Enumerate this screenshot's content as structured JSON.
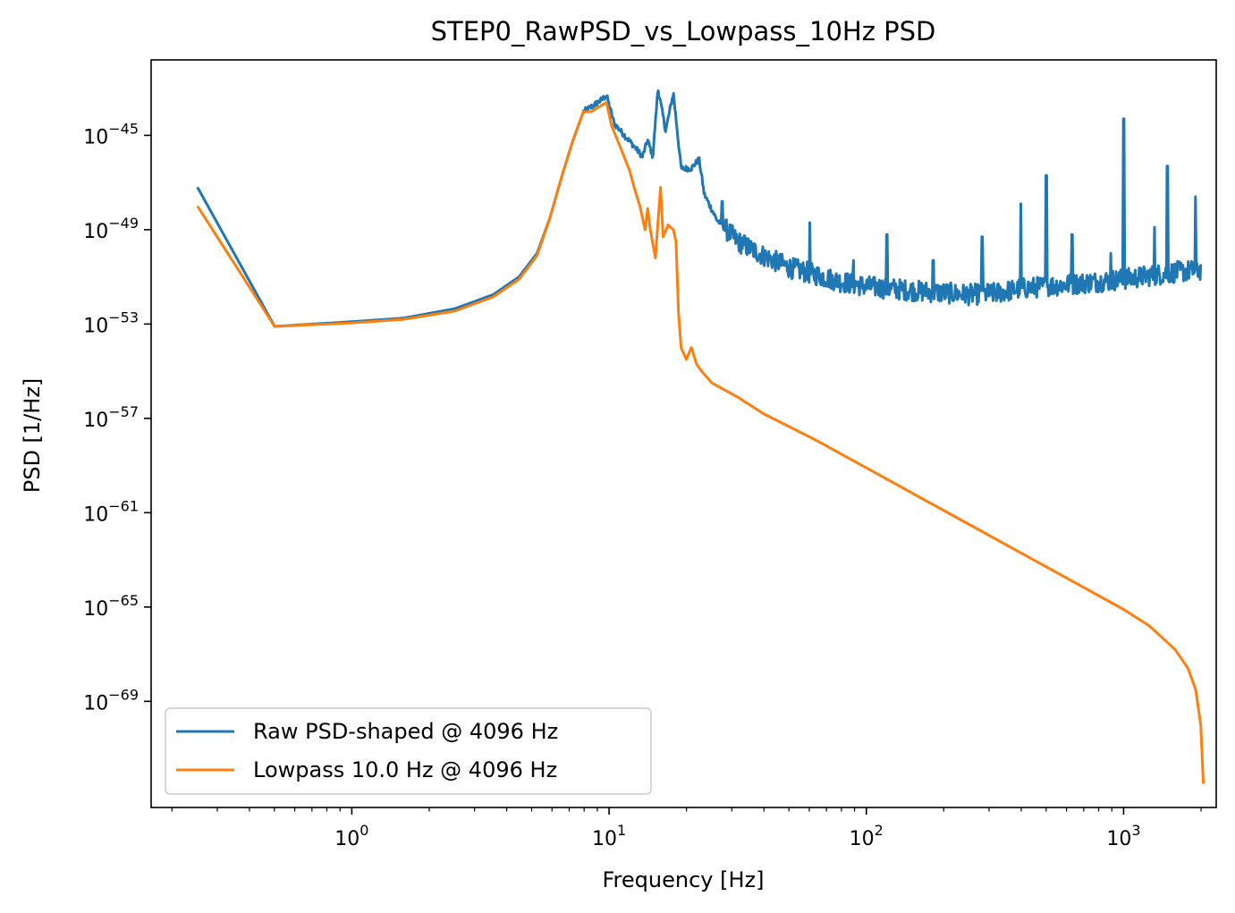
{
  "chart_data": {
    "type": "line",
    "title": "STEP0_RawPSD_vs_Lowpass_10Hz PSD",
    "xlabel": "Frequency [Hz]",
    "ylabel": "PSD [1/Hz]",
    "xscale": "log",
    "yscale": "log",
    "xlim_log10": [
      -0.78,
      3.36
    ],
    "ylim_log10": [
      -73.5,
      -41.8
    ],
    "xticks": [
      {
        "base": "10",
        "exp": "0",
        "log10": 0
      },
      {
        "base": "10",
        "exp": "1",
        "log10": 1
      },
      {
        "base": "10",
        "exp": "2",
        "log10": 2
      },
      {
        "base": "10",
        "exp": "3",
        "log10": 3
      }
    ],
    "yticks": [
      {
        "base": "10",
        "exp": "−45",
        "log10": -45
      },
      {
        "base": "10",
        "exp": "−49",
        "log10": -49
      },
      {
        "base": "10",
        "exp": "−53",
        "log10": -53
      },
      {
        "base": "10",
        "exp": "−57",
        "log10": -57
      },
      {
        "base": "10",
        "exp": "−61",
        "log10": -61
      },
      {
        "base": "10",
        "exp": "−65",
        "log10": -65
      },
      {
        "base": "10",
        "exp": "−69",
        "log10": -69
      }
    ],
    "legend_position": "lower-left",
    "series": [
      {
        "name": "Raw PSD-shaped @ 4096 Hz",
        "color": "#1f77b4",
        "noise": true,
        "points_log10": [
          [
            -0.6,
            -47.2
          ],
          [
            -0.3,
            -53.1
          ],
          [
            0.0,
            -52.9
          ],
          [
            0.2,
            -52.75
          ],
          [
            0.4,
            -52.35
          ],
          [
            0.55,
            -51.75
          ],
          [
            0.65,
            -51.0
          ],
          [
            0.72,
            -50.0
          ],
          [
            0.77,
            -48.5
          ],
          [
            0.82,
            -46.6
          ],
          [
            0.86,
            -45.2
          ],
          [
            0.9,
            -44.0
          ],
          [
            0.93,
            -43.8
          ],
          [
            0.97,
            -43.5
          ],
          [
            0.99,
            -43.3
          ],
          [
            1.02,
            -44.5
          ],
          [
            1.06,
            -45.0
          ],
          [
            1.1,
            -45.5
          ],
          [
            1.13,
            -45.9
          ],
          [
            1.15,
            -45.2
          ],
          [
            1.17,
            -45.9
          ],
          [
            1.19,
            -43.0
          ],
          [
            1.22,
            -44.8
          ],
          [
            1.25,
            -43.2
          ],
          [
            1.28,
            -46.4
          ],
          [
            1.32,
            -46.4
          ],
          [
            1.35,
            -46.0
          ],
          [
            1.37,
            -47.5
          ],
          [
            1.42,
            -48.6
          ],
          [
            1.5,
            -49.5
          ],
          [
            1.6,
            -50.1
          ],
          [
            1.7,
            -50.6
          ],
          [
            1.8,
            -50.9
          ],
          [
            1.9,
            -51.2
          ],
          [
            2.0,
            -51.4
          ],
          [
            2.2,
            -51.6
          ],
          [
            2.4,
            -51.75
          ],
          [
            2.5,
            -51.7
          ],
          [
            2.6,
            -51.5
          ],
          [
            2.8,
            -51.3
          ],
          [
            3.0,
            -51.1
          ],
          [
            3.2,
            -50.8
          ],
          [
            3.3,
            -50.7
          ]
        ],
        "spikes_log10": [
          [
            1.44,
            -47.8
          ],
          [
            1.78,
            -48.7
          ],
          [
            1.95,
            -50.3
          ],
          [
            2.08,
            -49.2
          ],
          [
            2.26,
            -50.3
          ],
          [
            2.45,
            -49.3
          ],
          [
            2.6,
            -47.9
          ],
          [
            2.7,
            -46.7
          ],
          [
            2.8,
            -49.2
          ],
          [
            2.95,
            -50.0
          ],
          [
            3.0,
            -44.3
          ],
          [
            3.12,
            -48.9
          ],
          [
            3.17,
            -46.3
          ],
          [
            3.28,
            -47.6
          ]
        ]
      },
      {
        "name": "Lowpass 10.0 Hz @ 4096 Hz",
        "color": "#ff7f0e",
        "noise": false,
        "points_log10": [
          [
            -0.6,
            -48.0
          ],
          [
            -0.3,
            -53.1
          ],
          [
            0.0,
            -52.95
          ],
          [
            0.2,
            -52.8
          ],
          [
            0.4,
            -52.45
          ],
          [
            0.55,
            -51.85
          ],
          [
            0.65,
            -51.1
          ],
          [
            0.72,
            -50.1
          ],
          [
            0.77,
            -48.5
          ],
          [
            0.82,
            -46.6
          ],
          [
            0.86,
            -45.2
          ],
          [
            0.9,
            -44.0
          ],
          [
            0.93,
            -44.0
          ],
          [
            0.96,
            -43.8
          ],
          [
            0.99,
            -43.6
          ],
          [
            1.01,
            -44.6
          ],
          [
            1.04,
            -45.4
          ],
          [
            1.08,
            -46.5
          ],
          [
            1.1,
            -47.3
          ],
          [
            1.12,
            -48.0
          ],
          [
            1.14,
            -49.0
          ],
          [
            1.15,
            -48.1
          ],
          [
            1.16,
            -49.0
          ],
          [
            1.18,
            -50.2
          ],
          [
            1.2,
            -47.2
          ],
          [
            1.21,
            -49.3
          ],
          [
            1.23,
            -48.8
          ],
          [
            1.25,
            -49.0
          ],
          [
            1.26,
            -49.5
          ],
          [
            1.27,
            -52.5
          ],
          [
            1.28,
            -54.0
          ],
          [
            1.3,
            -54.5
          ],
          [
            1.32,
            -54.0
          ],
          [
            1.34,
            -54.7
          ],
          [
            1.36,
            -55.0
          ],
          [
            1.4,
            -55.5
          ],
          [
            1.5,
            -56.1
          ],
          [
            1.6,
            -56.8
          ],
          [
            1.8,
            -57.9
          ],
          [
            2.0,
            -59.1
          ],
          [
            2.2,
            -60.3
          ],
          [
            2.4,
            -61.5
          ],
          [
            2.6,
            -62.7
          ],
          [
            2.8,
            -63.9
          ],
          [
            3.0,
            -65.1
          ],
          [
            3.1,
            -65.8
          ],
          [
            3.2,
            -66.8
          ],
          [
            3.25,
            -67.6
          ],
          [
            3.28,
            -68.5
          ],
          [
            3.3,
            -70.0
          ],
          [
            3.31,
            -72.5
          ]
        ],
        "spikes_log10": []
      }
    ]
  }
}
